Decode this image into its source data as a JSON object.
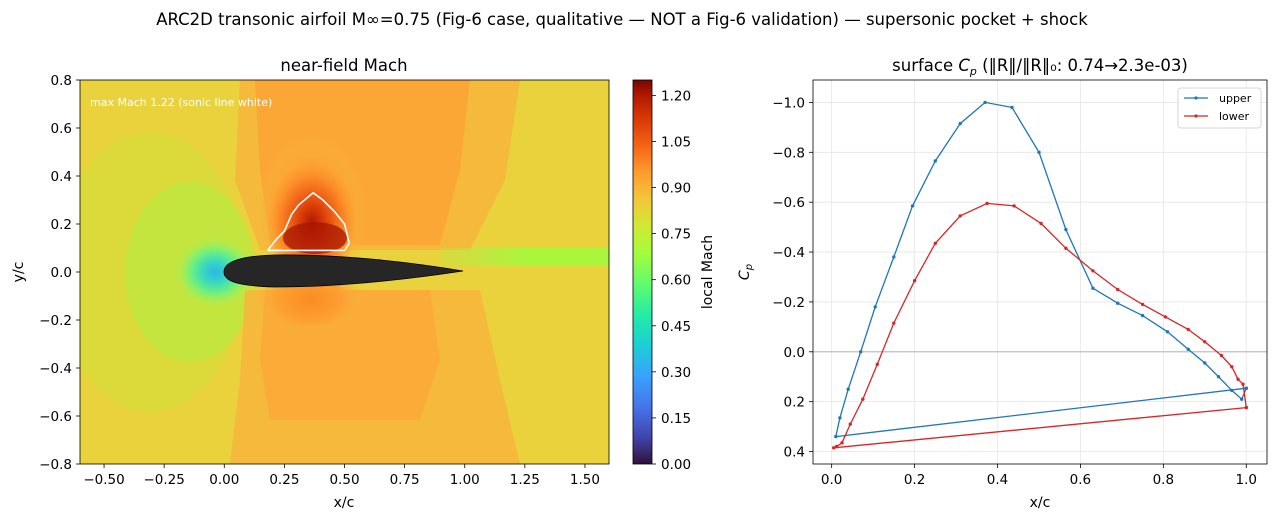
{
  "figure": {
    "suptitle": "ARC2D transonic airfoil M∞=0.75 (Fig-6 case, qualitative — NOT a Fig-6 validation) — supersonic pocket + shock"
  },
  "chart_data": [
    {
      "type": "heatmap",
      "title": "near-field Mach",
      "xlabel": "x/c",
      "ylabel": "y/c",
      "xlim": [
        -0.6,
        1.6
      ],
      "ylim": [
        -0.8,
        0.8
      ],
      "xticks": [
        "−0.50",
        "−0.25",
        "0.00",
        "0.25",
        "0.50",
        "0.75",
        "1.00",
        "1.25",
        "1.50"
      ],
      "xtick_values": [
        -0.5,
        -0.25,
        0,
        0.25,
        0.5,
        0.75,
        1.0,
        1.25,
        1.5
      ],
      "yticks": [
        "−0.8",
        "−0.6",
        "−0.4",
        "−0.2",
        "0.0",
        "0.2",
        "0.4",
        "0.6",
        "0.8"
      ],
      "ytick_values": [
        -0.8,
        -0.6,
        -0.4,
        -0.2,
        0,
        0.2,
        0.4,
        0.6,
        0.8
      ],
      "annotation": "max Mach 1.22 (sonic line white)",
      "colorbar": {
        "label": "local Mach",
        "range": [
          0.0,
          1.25
        ],
        "ticks": [
          "0.00",
          "0.15",
          "0.30",
          "0.45",
          "0.60",
          "0.75",
          "0.90",
          "1.05",
          "1.20"
        ],
        "tick_values": [
          0.0,
          0.15,
          0.3,
          0.45,
          0.6,
          0.75,
          0.9,
          1.05,
          1.2
        ]
      },
      "max_mach": 1.22,
      "sonic_line": [
        {
          "x": 0.18,
          "y": 0.09
        },
        {
          "x": 0.22,
          "y": 0.14
        },
        {
          "x": 0.25,
          "y": 0.17
        },
        {
          "x": 0.28,
          "y": 0.24
        },
        {
          "x": 0.31,
          "y": 0.28
        },
        {
          "x": 0.37,
          "y": 0.33
        },
        {
          "x": 0.41,
          "y": 0.3
        },
        {
          "x": 0.46,
          "y": 0.25
        },
        {
          "x": 0.5,
          "y": 0.2
        },
        {
          "x": 0.52,
          "y": 0.12
        },
        {
          "x": 0.5,
          "y": 0.09
        },
        {
          "x": 0.18,
          "y": 0.09
        }
      ]
    },
    {
      "type": "line",
      "title_prefix": "surface ",
      "title_var": "C",
      "title_sub": "p",
      "title_suffix": " (‖R‖/‖R‖₀: 0.74→2.3e-03)",
      "xlabel": "x/c",
      "ylabel_var": "C",
      "ylabel_sub": "p",
      "xlim": [
        -0.045,
        1.05
      ],
      "ylim": [
        0.45,
        -1.09
      ],
      "y_inverted": true,
      "grid": true,
      "legend_position": "top-right",
      "xticks": [
        "0.0",
        "0.2",
        "0.4",
        "0.6",
        "0.8",
        "1.0"
      ],
      "xtick_values": [
        0,
        0.2,
        0.4,
        0.6,
        0.8,
        1.0
      ],
      "yticks": [
        "−1.0",
        "−0.8",
        "−0.6",
        "−0.4",
        "−0.2",
        "0.0",
        "0.2",
        "0.4"
      ],
      "ytick_values": [
        -1.0,
        -0.8,
        -0.6,
        -0.4,
        -0.2,
        0,
        0.2,
        0.4
      ],
      "series": [
        {
          "name": "upper",
          "color": "#1f77b4",
          "points": [
            [
              1.0,
              0.146
            ],
            [
              0.989,
              0.19
            ],
            [
              0.965,
              0.155
            ],
            [
              0.933,
              0.1
            ],
            [
              0.9,
              0.045
            ],
            [
              0.86,
              -0.01
            ],
            [
              0.81,
              -0.08
            ],
            [
              0.75,
              -0.145
            ],
            [
              0.69,
              -0.195
            ],
            [
              0.63,
              -0.255
            ],
            [
              0.565,
              -0.49
            ],
            [
              0.5,
              -0.8
            ],
            [
              0.435,
              -0.98
            ],
            [
              0.37,
              -1.0
            ],
            [
              0.31,
              -0.915
            ],
            [
              0.25,
              -0.765
            ],
            [
              0.195,
              -0.585
            ],
            [
              0.15,
              -0.38
            ],
            [
              0.105,
              -0.18
            ],
            [
              0.07,
              0.0
            ],
            [
              0.04,
              0.15
            ],
            [
              0.02,
              0.265
            ],
            [
              0.01,
              0.34
            ],
            [
              1.0,
              0.146
            ]
          ]
        },
        {
          "name": "lower",
          "color": "#d62728",
          "points": [
            [
              1.0,
              0.224
            ],
            [
              0.992,
              0.13
            ],
            [
              0.98,
              0.11
            ],
            [
              0.965,
              0.06
            ],
            [
              0.94,
              0.015
            ],
            [
              0.9,
              -0.04
            ],
            [
              0.86,
              -0.09
            ],
            [
              0.805,
              -0.14
            ],
            [
              0.75,
              -0.19
            ],
            [
              0.69,
              -0.25
            ],
            [
              0.63,
              -0.325
            ],
            [
              0.565,
              -0.415
            ],
            [
              0.505,
              -0.515
            ],
            [
              0.44,
              -0.585
            ],
            [
              0.375,
              -0.595
            ],
            [
              0.31,
              -0.545
            ],
            [
              0.25,
              -0.435
            ],
            [
              0.2,
              -0.285
            ],
            [
              0.15,
              -0.115
            ],
            [
              0.11,
              0.05
            ],
            [
              0.075,
              0.19
            ],
            [
              0.045,
              0.29
            ],
            [
              0.025,
              0.365
            ],
            [
              0.012,
              0.38
            ],
            [
              0.005,
              0.385
            ],
            [
              1.0,
              0.224
            ]
          ]
        }
      ]
    }
  ]
}
